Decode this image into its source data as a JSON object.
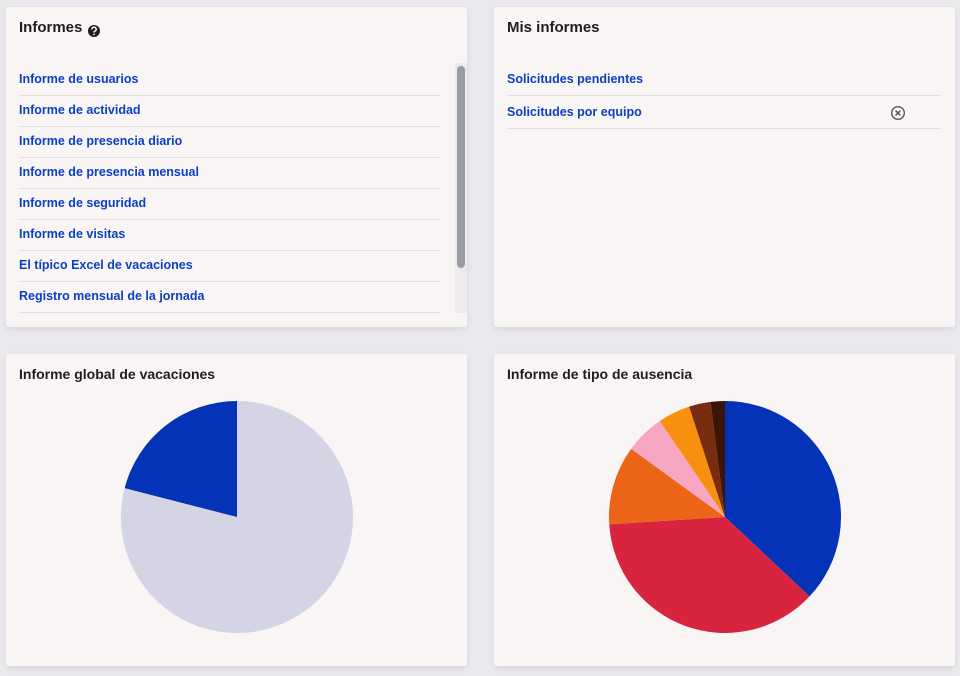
{
  "reports": {
    "title": "Informes",
    "items": [
      "Informe de usuarios",
      "Informe de actividad",
      "Informe de presencia diario",
      "Informe de presencia mensual",
      "Informe de seguridad",
      "Informe de visitas",
      "El típico Excel de vacaciones",
      "Registro mensual de la jornada"
    ]
  },
  "my_reports": {
    "title": "Mis informes",
    "items": [
      "Solicitudes pendientes",
      "Solicitudes por equipo"
    ]
  },
  "chart_data": [
    {
      "type": "pie",
      "title": "Informe global de vacaciones",
      "values": [
        79,
        21
      ],
      "colors": [
        "#d4d4e4",
        "#0433b8"
      ]
    },
    {
      "type": "pie",
      "title": "Informe de tipo de ausencia",
      "values": [
        37,
        37,
        11,
        5.5,
        4.5,
        3,
        2
      ],
      "colors": [
        "#0433b8",
        "#d8243f",
        "#ec6417",
        "#f7a6c1",
        "#f7900f",
        "#7a2c10",
        "#3b1608"
      ]
    }
  ]
}
